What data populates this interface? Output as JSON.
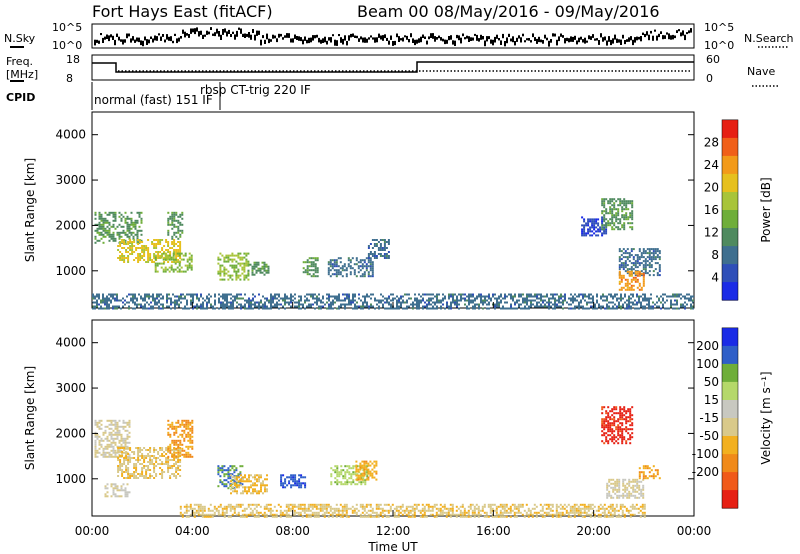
{
  "header": {
    "title": "Fort Hays East (fitACF)",
    "beam_info": "Beam 00  08/May/2016 - 09/May/2016"
  },
  "strips": {
    "nsky_label": "N.Sky",
    "nsky_ticks": [
      "10^5",
      "10^0"
    ],
    "nsearch_label": "N.Search",
    "nsearch_ticks": [
      "10^5",
      "10^0"
    ],
    "freq_label_1": "Freq.",
    "freq_label_2": "[MHz]",
    "freq_ticks": [
      "18",
      "8"
    ],
    "nave_label": "Nave",
    "nave_ticks": [
      "60",
      "0"
    ],
    "cpid_label": "CPID",
    "cpid_items": [
      "normal (fast) 151 IF",
      "rbsp CT-trig 220 IF"
    ]
  },
  "colors": {
    "power": [
      "#1a2be6",
      "#2f4fb8",
      "#3f6f8f",
      "#4f8a5f",
      "#6fae3a",
      "#a8c43a",
      "#e6c01e",
      "#f29a1a",
      "#f0601a",
      "#e62014"
    ],
    "velocity": [
      "#1a2be6",
      "#2f5fc8",
      "#6fae3a",
      "#b5d86a",
      "#c8c8c0",
      "#d9c98a",
      "#f2b020",
      "#f08a1a",
      "#f05a1a",
      "#e62014"
    ]
  },
  "chart_data": [
    {
      "type": "heatmap",
      "title": "Power",
      "ylabel": "Slant Range [km]",
      "xlabel": "",
      "x_tick_labels": [
        "00:00",
        "04:00",
        "08:00",
        "12:00",
        "16:00",
        "20:00",
        "00:00"
      ],
      "x_range_hours": [
        0,
        24
      ],
      "ylim": [
        180,
        4500
      ],
      "y_ticks": [
        1000,
        2000,
        3000,
        4000
      ],
      "colorbar_label": "Power [dB]",
      "colorbar_ticks": [
        4,
        8,
        12,
        16,
        20,
        24,
        28
      ],
      "colorbar_range": [
        0,
        32
      ],
      "regions": [
        {
          "t0": 0.1,
          "t1": 2.0,
          "r0": 1600,
          "r1": 2300,
          "v": 12
        },
        {
          "t0": 1.0,
          "t1": 3.5,
          "r0": 1200,
          "r1": 1700,
          "v": 20
        },
        {
          "t0": 2.5,
          "t1": 4.0,
          "r0": 1000,
          "r1": 1400,
          "v": 16
        },
        {
          "t0": 3.0,
          "t1": 3.6,
          "r0": 1700,
          "r1": 2300,
          "v": 12
        },
        {
          "t0": 5.0,
          "t1": 6.2,
          "r0": 800,
          "r1": 1400,
          "v": 16
        },
        {
          "t0": 6.2,
          "t1": 7.0,
          "r0": 900,
          "r1": 1200,
          "v": 12
        },
        {
          "t0": 8.4,
          "t1": 9.0,
          "r0": 900,
          "r1": 1300,
          "v": 12
        },
        {
          "t0": 9.4,
          "t1": 11.2,
          "r0": 900,
          "r1": 1300,
          "v": 8
        },
        {
          "t0": 11.0,
          "t1": 11.8,
          "r0": 1300,
          "r1": 1700,
          "v": 8
        },
        {
          "t0": 19.5,
          "t1": 20.5,
          "r0": 1800,
          "r1": 2200,
          "v": 4
        },
        {
          "t0": 20.3,
          "t1": 21.5,
          "r0": 1900,
          "r1": 2600,
          "v": 12
        },
        {
          "t0": 21.0,
          "t1": 22.6,
          "r0": 900,
          "r1": 1500,
          "v": 8
        },
        {
          "t0": 21.0,
          "t1": 22.0,
          "r0": 600,
          "r1": 1000,
          "v": 24
        },
        {
          "t0": 0.0,
          "t1": 24.0,
          "r0": 180,
          "r1": 500,
          "v": 8
        }
      ]
    },
    {
      "type": "heatmap",
      "title": "Velocity",
      "ylabel": "Slant Range [km]",
      "xlabel": "Time UT",
      "x_tick_labels": [
        "00:00",
        "04:00",
        "08:00",
        "12:00",
        "16:00",
        "20:00",
        "00:00"
      ],
      "x_range_hours": [
        0,
        24
      ],
      "ylim": [
        180,
        4500
      ],
      "y_ticks": [
        1000,
        2000,
        3000,
        4000
      ],
      "colorbar_label": "Velocity [m s⁻¹]",
      "colorbar_ticks": [
        "200",
        "100",
        "50",
        "15",
        "-15",
        "-50",
        "-100",
        "-200"
      ],
      "colorbar_range": [
        -250,
        250
      ],
      "regions": [
        {
          "t0": 0.1,
          "t1": 1.5,
          "r0": 1500,
          "r1": 2300,
          "v": 0
        },
        {
          "t0": 1.0,
          "t1": 3.5,
          "r0": 1000,
          "r1": 1700,
          "v": -40
        },
        {
          "t0": 3.0,
          "t1": 4.0,
          "r0": 1500,
          "r1": 2300,
          "v": -100
        },
        {
          "t0": 0.5,
          "t1": 1.5,
          "r0": 600,
          "r1": 900,
          "v": 0
        },
        {
          "t0": 5.0,
          "t1": 6.0,
          "r0": 800,
          "r1": 1300,
          "v": 150
        },
        {
          "t0": 5.5,
          "t1": 7.0,
          "r0": 700,
          "r1": 1100,
          "v": -60
        },
        {
          "t0": 7.5,
          "t1": 8.5,
          "r0": 800,
          "r1": 1100,
          "v": 180
        },
        {
          "t0": 9.5,
          "t1": 11.0,
          "r0": 900,
          "r1": 1300,
          "v": 80
        },
        {
          "t0": 10.5,
          "t1": 11.3,
          "r0": 1000,
          "r1": 1400,
          "v": -80
        },
        {
          "t0": 20.3,
          "t1": 21.5,
          "r0": 1800,
          "r1": 2600,
          "v": -220
        },
        {
          "t0": 20.5,
          "t1": 22.0,
          "r0": 600,
          "r1": 1000,
          "v": 0
        },
        {
          "t0": 21.8,
          "t1": 22.6,
          "r0": 1000,
          "r1": 1300,
          "v": -90
        },
        {
          "t0": 3.5,
          "t1": 22.0,
          "r0": 180,
          "r1": 450,
          "v": -40
        }
      ]
    }
  ]
}
